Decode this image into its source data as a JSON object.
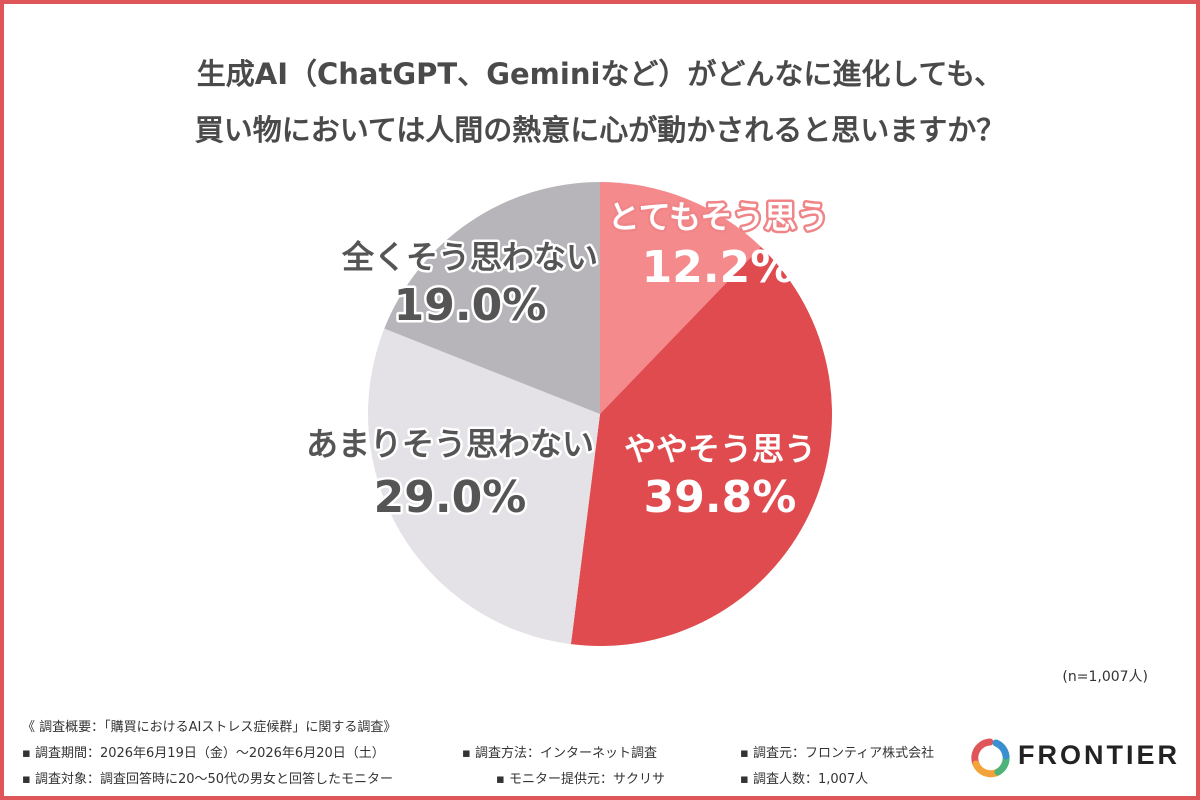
{
  "title_lines": [
    "生成AI（ChatGPT、Geminiなど）がどんなに進化しても、",
    "買い物においては人間の熱意に心が動かされると思いますか？"
  ],
  "chart_data": {
    "type": "pie",
    "start_angle_deg": 0,
    "direction": "clockwise",
    "slices": [
      {
        "label": "とてもそう思う",
        "value": 12.2,
        "display": "12.2%",
        "color": "#f58a8c",
        "label_color": "#ffffff",
        "value_color": "#ffffff",
        "label_stroke": "#f08588"
      },
      {
        "label": "ややそう思う",
        "value": 39.8,
        "display": "39.8%",
        "color": "#df4b4f",
        "label_color": "#ffffff",
        "value_color": "#ffffff",
        "label_stroke": null
      },
      {
        "label": "あまりそう思わない",
        "value": 29.0,
        "display": "29.0%",
        "color": "#e4e2e6",
        "label_color": "#555555",
        "value_color": "#555555",
        "label_stroke": "#ffffff"
      },
      {
        "label": "全くそう思わない",
        "value": 19.0,
        "display": "19.0%",
        "color": "#b7b5ba",
        "label_color": "#555555",
        "value_color": "#555555",
        "label_stroke": "#ffffff"
      }
    ]
  },
  "sample_note": "(n=1,007人)",
  "footer": {
    "summary": "《 調査概要：「購買におけるAIストレス症候群」に関する調査》",
    "period": "▪ 調査期間：2026年6月19日（金）〜2026年6月20日（土）",
    "method": "▪ 調査方法：インターネット調査",
    "source": "▪ 調査元：フロンティア株式会社",
    "target": "▪ 調査対象：調査回答時に20〜50代の男女と回答したモニター",
    "provider": "▪ モニター提供元：サクリサ",
    "count": "▪ 調査人数：1,007人"
  },
  "logo": {
    "text": "FRONTIER",
    "ring_colors": [
      "#e0555a",
      "#f3a33a",
      "#4fb27a",
      "#3a8fd0"
    ]
  },
  "frame_color": "#e0555a"
}
